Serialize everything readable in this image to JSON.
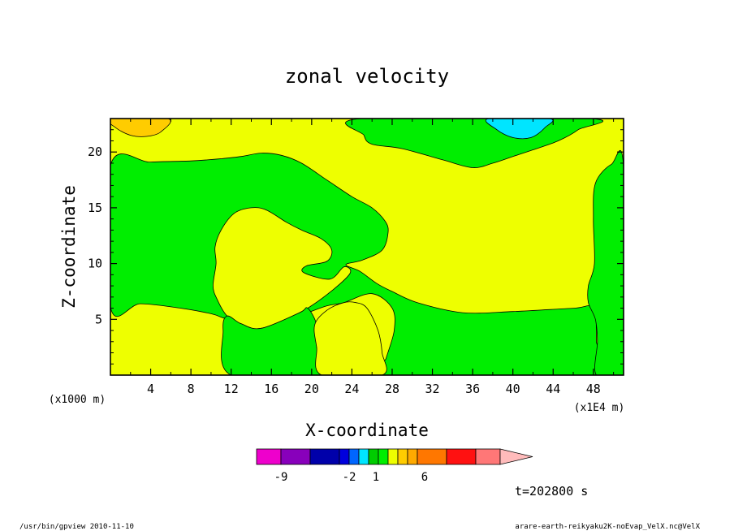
{
  "chart_data": {
    "type": "heatmap",
    "title": "zonal velocity",
    "xlabel": "X-coordinate",
    "ylabel": "Z-coordinate",
    "x_unit_label": "(x1E4 m)",
    "y_unit_label": "(x1000 m)",
    "xlim": [
      0,
      51
    ],
    "ylim": [
      0,
      23
    ],
    "x_ticks": [
      4,
      8,
      12,
      16,
      20,
      24,
      28,
      32,
      36,
      40,
      44,
      48
    ],
    "y_ticks": [
      5,
      10,
      15,
      20
    ],
    "regions": [
      {
        "name": "green",
        "color": "#00ee00",
        "points": [
          [
            0,
            18.8
          ],
          [
            4,
            19.1
          ],
          [
            8,
            19.2
          ],
          [
            11,
            19.4
          ],
          [
            13,
            19.6
          ],
          [
            15,
            19.9
          ],
          [
            17,
            19.7
          ],
          [
            19,
            19
          ],
          [
            21.5,
            17.5
          ],
          [
            24,
            16
          ],
          [
            26,
            15
          ],
          [
            27.3,
            13.8
          ],
          [
            27.6,
            12.8
          ],
          [
            27,
            11.2
          ],
          [
            25,
            10.3
          ],
          [
            23.4,
            9.9
          ],
          [
            24.8,
            9.3
          ],
          [
            26.5,
            8.2
          ],
          [
            28,
            7.5
          ],
          [
            30.5,
            6.5
          ],
          [
            35,
            5.6
          ],
          [
            40,
            5.7
          ],
          [
            46,
            6
          ],
          [
            48,
            6
          ],
          [
            48.3,
            3
          ],
          [
            48.2,
            0
          ],
          [
            27,
            0
          ],
          [
            27.4,
            1.5
          ],
          [
            28.2,
            4
          ],
          [
            28,
            6
          ],
          [
            26,
            7.3
          ],
          [
            23.2,
            6.5
          ],
          [
            21.5,
            6.2
          ],
          [
            19,
            5.4
          ],
          [
            15,
            4.2
          ],
          [
            13,
            4.6
          ],
          [
            11.3,
            5.1
          ],
          [
            10,
            5.5
          ],
          [
            7,
            6
          ],
          [
            3,
            6.4
          ],
          [
            0,
            6.1
          ]
        ]
      },
      {
        "name": "yellow",
        "color": "#eeff00",
        "points": [
          [
            11.6,
            5.3
          ],
          [
            10.6,
            6.8
          ],
          [
            10.2,
            8
          ],
          [
            10.5,
            10
          ],
          [
            10.4,
            11.5
          ],
          [
            11,
            13
          ],
          [
            12.3,
            14.5
          ],
          [
            14,
            15
          ],
          [
            15.5,
            14.8
          ],
          [
            17.5,
            13.7
          ],
          [
            19,
            13
          ],
          [
            21,
            12.2
          ],
          [
            22,
            11.2
          ],
          [
            21.5,
            10.2
          ],
          [
            19.5,
            9.8
          ],
          [
            19.2,
            9.2
          ],
          [
            21.8,
            8.6
          ],
          [
            23.2,
            9.7
          ],
          [
            23.8,
            9.1
          ],
          [
            21.5,
            7.2
          ],
          [
            18.8,
            5.6
          ],
          [
            15,
            4.2
          ],
          [
            13,
            4.6
          ]
        ]
      },
      {
        "name": "green",
        "color": "#00ee00",
        "points": [
          [
            12,
            0
          ],
          [
            11.2,
            4
          ],
          [
            11.6,
            5.3
          ],
          [
            13,
            4.6
          ],
          [
            15,
            4.2
          ],
          [
            18.8,
            5.6
          ],
          [
            19.6,
            6
          ],
          [
            20.5,
            4.5
          ],
          [
            20.5,
            2.5
          ],
          [
            21,
            0
          ]
        ]
      },
      {
        "name": "yellow",
        "color": "#eeff00",
        "points": [
          [
            21,
            0
          ],
          [
            20.5,
            2.5
          ],
          [
            20.3,
            4.5
          ],
          [
            21.5,
            5.8
          ],
          [
            23.2,
            6.5
          ],
          [
            24.4,
            6.5
          ],
          [
            25.5,
            6
          ],
          [
            26.6,
            4
          ],
          [
            27,
            2
          ],
          [
            27,
            0
          ]
        ]
      },
      {
        "name": "green",
        "color": "#00ee00",
        "points": [
          [
            25,
            23
          ],
          [
            25.2,
            21.5
          ],
          [
            26,
            20.7
          ],
          [
            29,
            20.3
          ],
          [
            33,
            19.3
          ],
          [
            36,
            18.6
          ],
          [
            38,
            19
          ],
          [
            40,
            19.6
          ],
          [
            42,
            20.2
          ],
          [
            44.5,
            21
          ],
          [
            46.5,
            22
          ],
          [
            47.5,
            23
          ]
        ]
      },
      {
        "name": "green",
        "color": "#00ee00",
        "points": [
          [
            51,
            18.6
          ],
          [
            49.8,
            18.9
          ],
          [
            48.2,
            17.2
          ],
          [
            48,
            14
          ],
          [
            48.1,
            10
          ],
          [
            47.5,
            8
          ],
          [
            47.5,
            6.5
          ],
          [
            48.2,
            5
          ],
          [
            48.4,
            3
          ],
          [
            48.3,
            0
          ],
          [
            51,
            0
          ]
        ]
      },
      {
        "name": "orange",
        "color": "#ffcc00",
        "points": [
          [
            0,
            23
          ],
          [
            0.5,
            22.2
          ],
          [
            2,
            21.5
          ],
          [
            3.6,
            21.4
          ],
          [
            5,
            21.8
          ],
          [
            5.7,
            23
          ]
        ]
      },
      {
        "name": "cyan",
        "color": "#00e5ff",
        "points": [
          [
            37.6,
            23
          ],
          [
            38.4,
            22
          ],
          [
            40,
            21.3
          ],
          [
            41.8,
            21.3
          ],
          [
            43.2,
            22.2
          ],
          [
            43.6,
            23
          ]
        ]
      }
    ],
    "colorbar": {
      "colors": [
        "#ee00cc",
        "#8800bb",
        "#0000aa",
        "#0000dd",
        "#0066ff",
        "#00e5ff",
        "#00cc00",
        "#00ee00",
        "#eeff00",
        "#ffcc00",
        "#ffaa00",
        "#ff7700",
        "#ff1111",
        "#ff7777",
        "#ffbbbb"
      ],
      "labels": [
        "-9",
        "-2",
        "1",
        "6"
      ]
    },
    "time_label": "t=202800 s"
  },
  "footer": {
    "left": "/usr/bin/gpview  2010-11-10",
    "right": "arare-earth-reikyaku2K-noEvap_VelX.nc@VelX"
  }
}
